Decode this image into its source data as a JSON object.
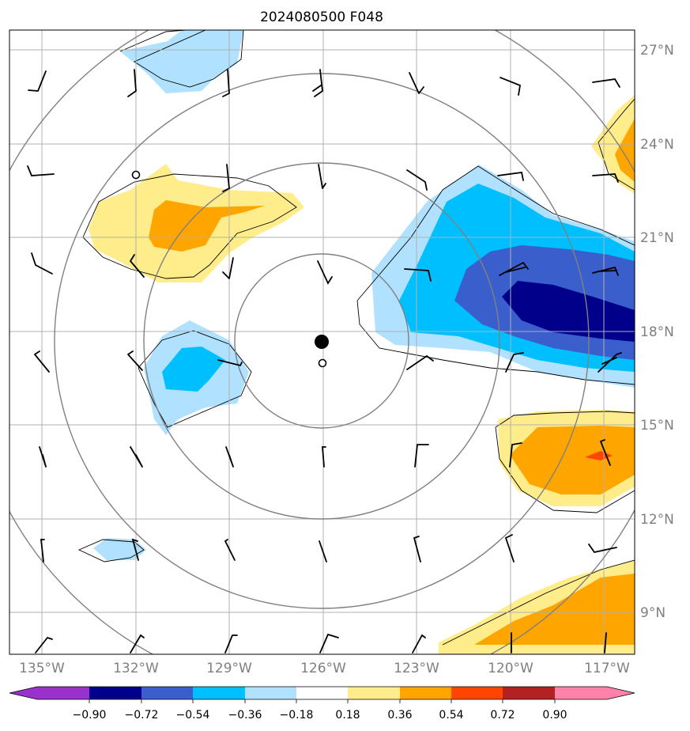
{
  "title": "2024080500 F048",
  "longitude_labels": [
    "135°W",
    "132°W",
    "129°W",
    "126°W",
    "123°W",
    "120°W",
    "117°W"
  ],
  "latitude_labels": [
    "27°N",
    "24°N",
    "21°N",
    "18°N",
    "15°N",
    "12°N",
    "9°N"
  ],
  "colorbar": {
    "tick_labels": [
      "−0.90",
      "−0.72",
      "−0.54",
      "−0.36",
      "−0.18",
      "0.18",
      "0.36",
      "0.54",
      "0.72",
      "0.90"
    ],
    "colors": [
      "#9932cc",
      "#00008b",
      "#3a5fcd",
      "#00bfff",
      "#b0e2ff",
      "#ffffff",
      "#ffec8b",
      "#ffa500",
      "#ff4500",
      "#b22222",
      "#ff82ab"
    ]
  },
  "storm_center": {
    "lon": "126°W",
    "lat": "17.6°N"
  },
  "map_extent": {
    "lon_range": [
      -136,
      -116
    ],
    "lat_range": [
      8,
      28
    ]
  }
}
